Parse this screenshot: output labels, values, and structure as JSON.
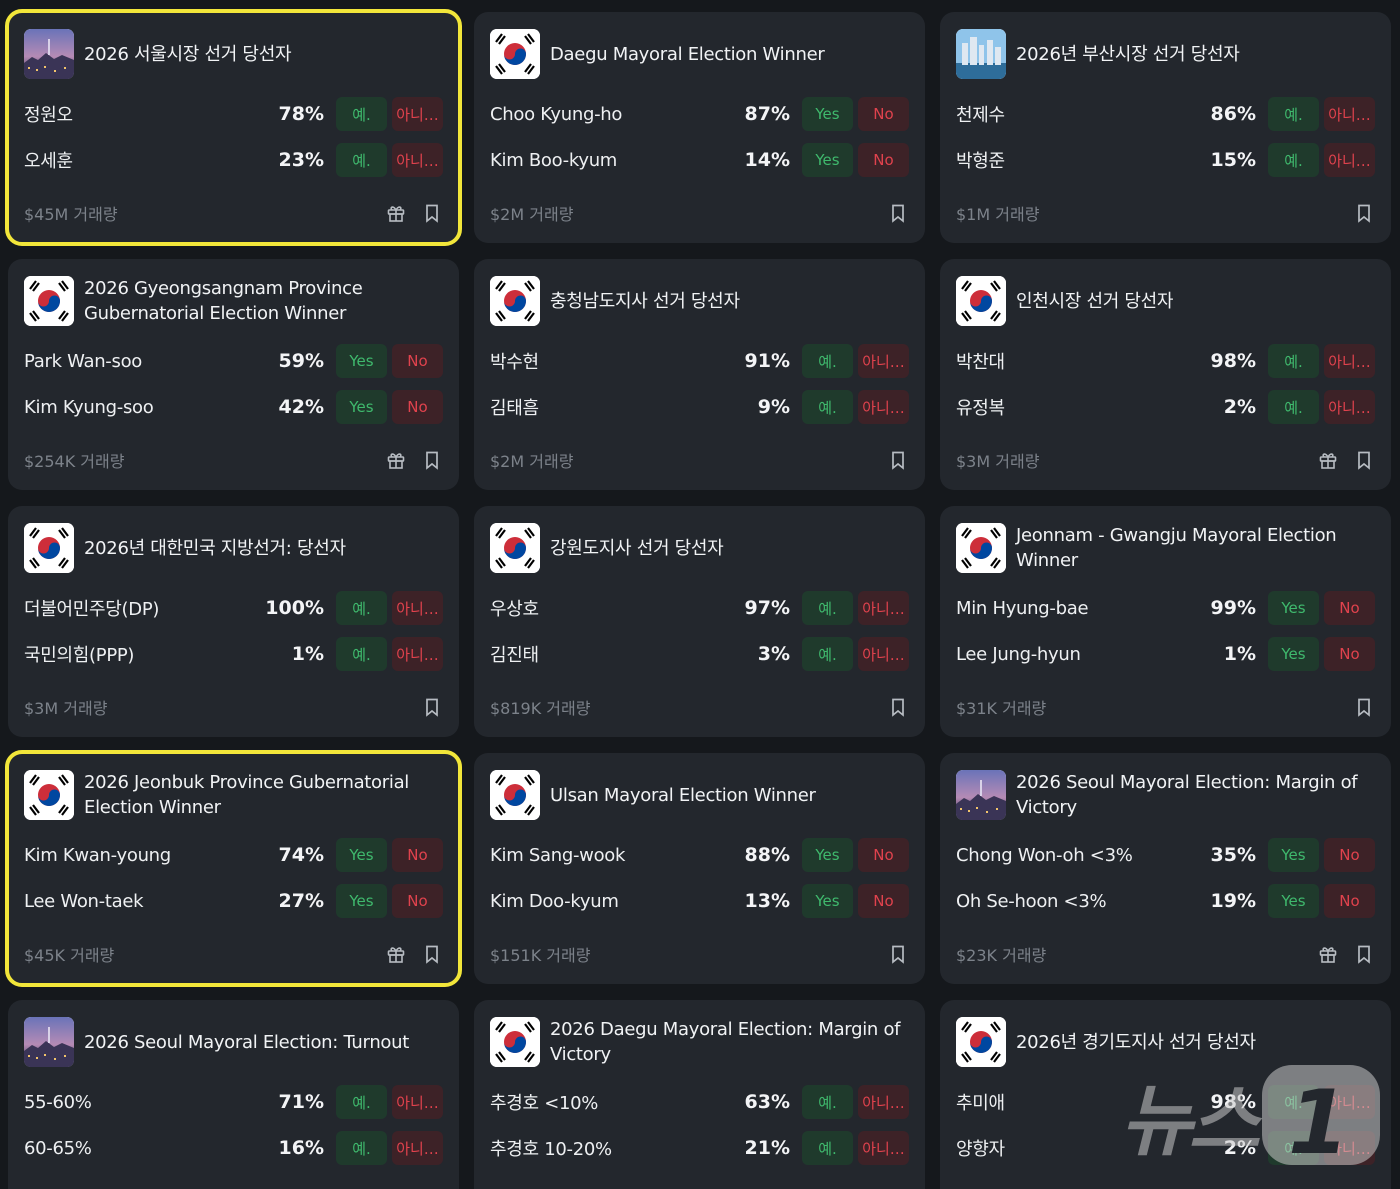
{
  "volume_suffix": "거래량",
  "cards": [
    {
      "title": "2026 서울시장 선거 당선자",
      "thumb": "seoul-cityscape",
      "highlighted": true,
      "yes": "예.",
      "no": "아니…",
      "options": [
        {
          "name": "정원오",
          "pct": "78%"
        },
        {
          "name": "오세훈",
          "pct": "23%"
        }
      ],
      "volume": "$45M 거래량",
      "gift": true
    },
    {
      "title": "Daegu Mayoral Election Winner",
      "thumb": "korea-flag",
      "highlighted": false,
      "yes": "Yes",
      "no": "No",
      "options": [
        {
          "name": "Choo Kyung-ho",
          "pct": "87%"
        },
        {
          "name": "Kim Boo-kyum",
          "pct": "14%"
        }
      ],
      "volume": "$2M 거래량",
      "gift": false
    },
    {
      "title": "2026년 부산시장 선거 당선자",
      "thumb": "busan-cityscape",
      "highlighted": false,
      "yes": "예.",
      "no": "아니…",
      "options": [
        {
          "name": "천제수",
          "pct": "86%"
        },
        {
          "name": "박형준",
          "pct": "15%"
        }
      ],
      "volume": "$1M 거래량",
      "gift": false
    },
    {
      "title": "2026 Gyeongsangnam Province Gubernatorial Election Winner",
      "thumb": "korea-flag",
      "highlighted": false,
      "yes": "Yes",
      "no": "No",
      "options": [
        {
          "name": "Park Wan-soo",
          "pct": "59%"
        },
        {
          "name": "Kim Kyung-soo",
          "pct": "42%"
        }
      ],
      "volume": "$254K 거래량",
      "gift": true
    },
    {
      "title": "충청남도지사 선거 당선자",
      "thumb": "korea-flag",
      "highlighted": false,
      "yes": "예.",
      "no": "아니…",
      "options": [
        {
          "name": "박수현",
          "pct": "91%"
        },
        {
          "name": "김태흠",
          "pct": "9%"
        }
      ],
      "volume": "$2M 거래량",
      "gift": false
    },
    {
      "title": "인천시장 선거 당선자",
      "thumb": "korea-flag",
      "highlighted": false,
      "yes": "예.",
      "no": "아니…",
      "options": [
        {
          "name": "박찬대",
          "pct": "98%"
        },
        {
          "name": "유정복",
          "pct": "2%"
        }
      ],
      "volume": "$3M 거래량",
      "gift": true
    },
    {
      "title": "2026년 대한민국 지방선거: 당선자",
      "thumb": "korea-flag",
      "highlighted": false,
      "yes": "예.",
      "no": "아니…",
      "options": [
        {
          "name": "더불어민주당(DP)",
          "pct": "100%"
        },
        {
          "name": "국민의힘(PPP)",
          "pct": "1%"
        }
      ],
      "volume": "$3M 거래량",
      "gift": false
    },
    {
      "title": "강원도지사 선거 당선자",
      "thumb": "korea-flag",
      "highlighted": false,
      "yes": "예.",
      "no": "아니…",
      "options": [
        {
          "name": "우상호",
          "pct": "97%"
        },
        {
          "name": "김진태",
          "pct": "3%"
        }
      ],
      "volume": "$819K 거래량",
      "gift": false
    },
    {
      "title": "Jeonnam - Gwangju Mayoral Election Winner",
      "thumb": "korea-flag",
      "highlighted": false,
      "yes": "Yes",
      "no": "No",
      "options": [
        {
          "name": "Min Hyung-bae",
          "pct": "99%"
        },
        {
          "name": "Lee Jung-hyun",
          "pct": "1%"
        }
      ],
      "volume": "$31K 거래량",
      "gift": false
    },
    {
      "title": "2026 Jeonbuk Province Gubernatorial Election Winner",
      "thumb": "korea-flag",
      "highlighted": true,
      "yes": "Yes",
      "no": "No",
      "options": [
        {
          "name": "Kim Kwan-young",
          "pct": "74%"
        },
        {
          "name": "Lee Won-taek",
          "pct": "27%"
        }
      ],
      "volume": "$45K 거래량",
      "gift": true
    },
    {
      "title": "Ulsan Mayoral Election Winner",
      "thumb": "korea-flag",
      "highlighted": false,
      "yes": "Yes",
      "no": "No",
      "options": [
        {
          "name": "Kim Sang-wook",
          "pct": "88%"
        },
        {
          "name": "Kim Doo-kyum",
          "pct": "13%"
        }
      ],
      "volume": "$151K 거래량",
      "gift": false
    },
    {
      "title": "2026 Seoul Mayoral Election: Margin of Victory",
      "thumb": "seoul-cityscape",
      "highlighted": false,
      "yes": "Yes",
      "no": "No",
      "options": [
        {
          "name": "Chong Won-oh <3%",
          "pct": "35%"
        },
        {
          "name": "Oh Se-hoon <3%",
          "pct": "19%"
        }
      ],
      "volume": "$23K 거래량",
      "gift": true
    },
    {
      "title": "2026 Seoul Mayoral Election: Turnout",
      "thumb": "seoul-cityscape",
      "highlighted": false,
      "yes": "예.",
      "no": "아니…",
      "options": [
        {
          "name": "55-60%",
          "pct": "71%"
        },
        {
          "name": "60-65%",
          "pct": "16%"
        }
      ],
      "volume": "",
      "gift": false
    },
    {
      "title": "2026 Daegu Mayoral Election: Margin of Victory",
      "thumb": "korea-flag",
      "highlighted": false,
      "yes": "예.",
      "no": "아니…",
      "options": [
        {
          "name": "추경호 <10%",
          "pct": "63%"
        },
        {
          "name": "추경호 10-20%",
          "pct": "21%"
        }
      ],
      "volume": "",
      "gift": false
    },
    {
      "title": "2026년 경기도지사 선거 당선자",
      "thumb": "korea-flag",
      "highlighted": false,
      "yes": "예.",
      "no": "아니…",
      "options": [
        {
          "name": "추미애",
          "pct": "98%"
        },
        {
          "name": "양향자",
          "pct": "2%"
        }
      ],
      "volume": "",
      "gift": false
    }
  ],
  "watermark": {
    "text": "뉴스",
    "logo_glyph": "1"
  },
  "colors": {
    "yes_bg": "#1f3a2c",
    "yes_text": "#3fb96d",
    "no_bg": "#3d2227",
    "no_text": "#e0424d",
    "highlight": "#f2e63a",
    "card_bg": "#23272d"
  }
}
